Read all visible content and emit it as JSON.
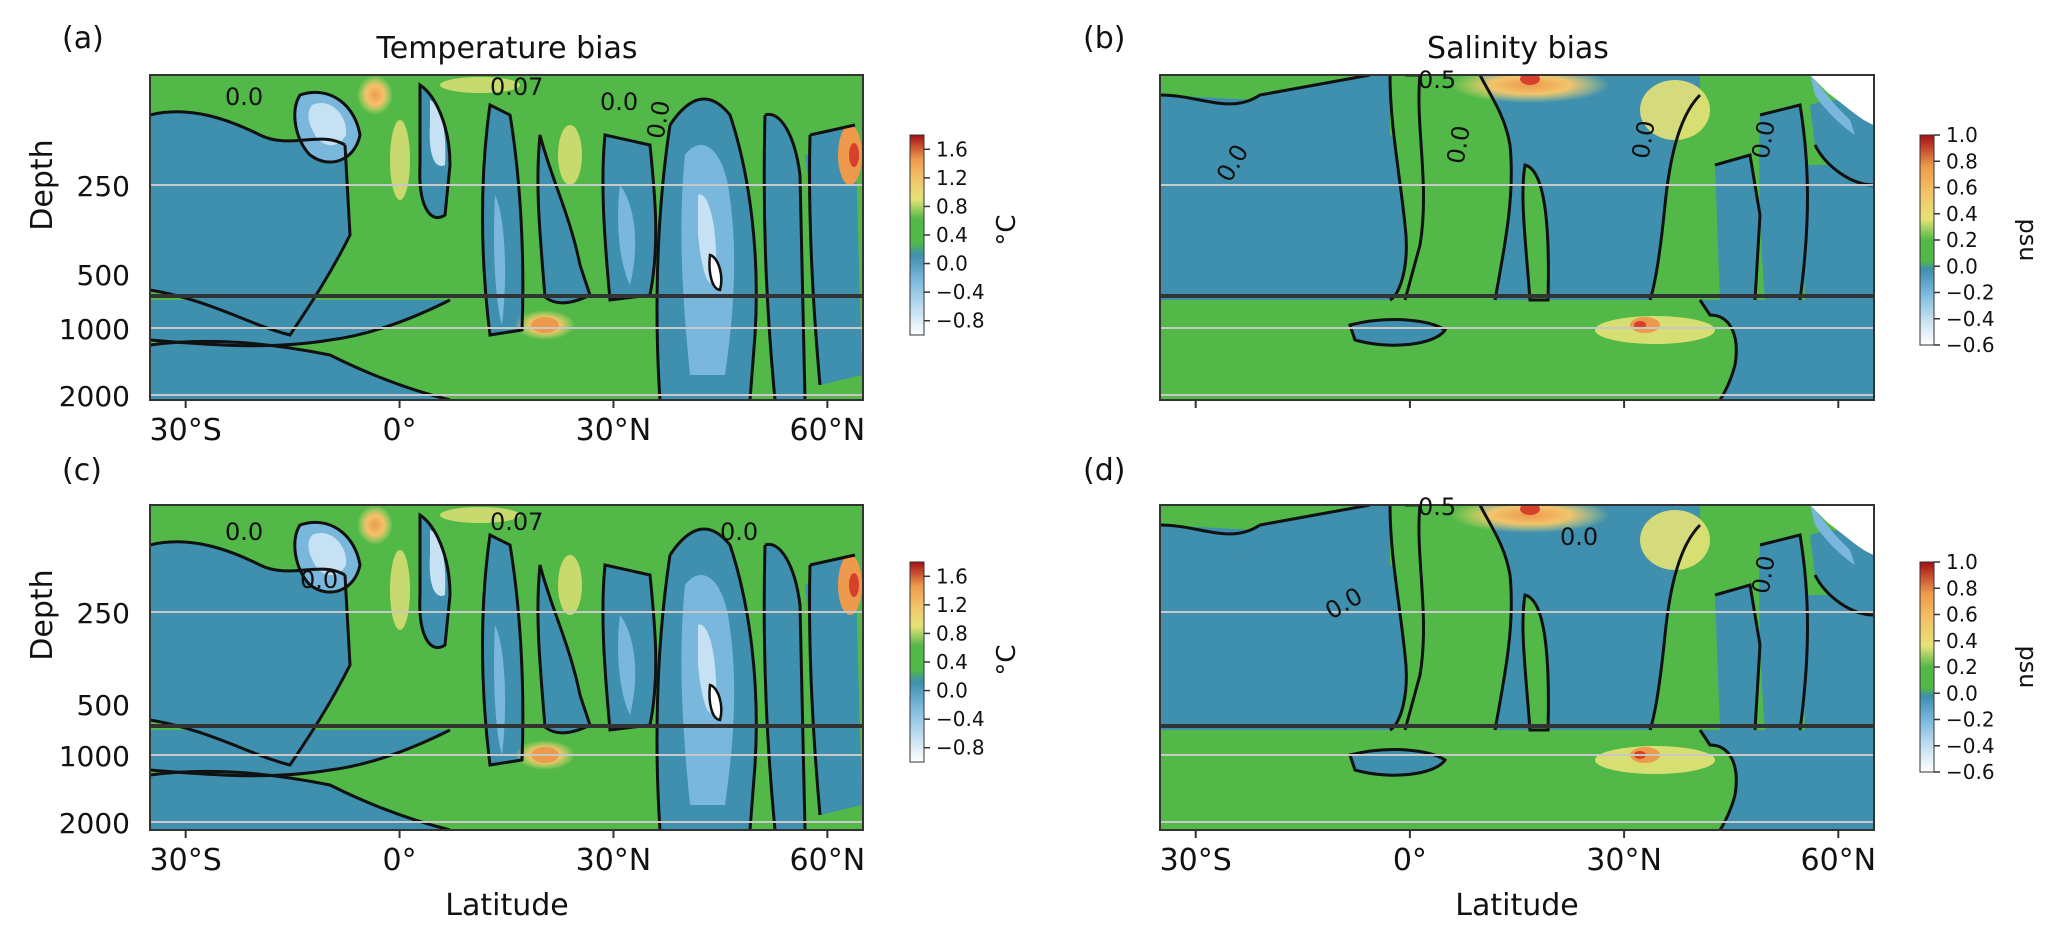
{
  "figure": {
    "title_left": "Temperature bias",
    "title_right": "Salinity bias",
    "xlabel": "Latitude",
    "ylabel": "Depth"
  },
  "chart_data": [
    {
      "panel": "(a)",
      "type": "heatmap",
      "title": "Temperature bias",
      "xlabel": "",
      "ylabel": "Depth",
      "x_ticks": [
        "30°S",
        "0°",
        "30°N",
        "60°N"
      ],
      "x_tick_values": [
        -30,
        0,
        30,
        60
      ],
      "xlim": [
        -35,
        65
      ],
      "y_ticks": [
        "250",
        "500",
        "1000",
        "2000"
      ],
      "colorbar": {
        "unit": "°C",
        "ticks": [
          "1.6",
          "1.2",
          "0.8",
          "0.4",
          "0.0",
          "−0.4",
          "−0.8"
        ],
        "range": [
          -1.0,
          1.8
        ]
      },
      "contour_labels": [
        "0.0",
        "0.07",
        "0.0",
        "0.0"
      ]
    },
    {
      "panel": "(b)",
      "type": "heatmap",
      "title": "Salinity bias",
      "xlabel": "",
      "ylabel": "",
      "x_tick_values": [
        -30,
        0,
        30,
        60
      ],
      "xlim": [
        -35,
        65
      ],
      "colorbar": {
        "unit": "psu",
        "ticks": [
          "1.0",
          "0.8",
          "0.6",
          "0.4",
          "0.2",
          "0.0",
          "−0.2",
          "−0.4",
          "−0.6"
        ],
        "range": [
          -0.6,
          1.0
        ]
      },
      "contour_labels": [
        "0.5",
        "0.0",
        "0.0",
        "0.0",
        "0.0"
      ]
    },
    {
      "panel": "(c)",
      "type": "heatmap",
      "title": "",
      "xlabel": "Latitude",
      "ylabel": "Depth",
      "x_ticks": [
        "30°S",
        "0°",
        "30°N",
        "60°N"
      ],
      "x_tick_values": [
        -30,
        0,
        30,
        60
      ],
      "xlim": [
        -35,
        65
      ],
      "y_ticks": [
        "250",
        "500",
        "1000",
        "2000"
      ],
      "colorbar": {
        "unit": "°C",
        "ticks": [
          "1.6",
          "1.2",
          "0.8",
          "0.4",
          "0.0",
          "−0.4",
          "−0.8"
        ],
        "range": [
          -1.0,
          1.8
        ]
      },
      "contour_labels": [
        "0.0",
        "0.07",
        "0.0",
        "0.0"
      ]
    },
    {
      "panel": "(d)",
      "type": "heatmap",
      "title": "",
      "xlabel": "Latitude",
      "ylabel": "",
      "x_ticks": [
        "30°S",
        "0°",
        "30°N",
        "60°N"
      ],
      "x_tick_values": [
        -30,
        0,
        30,
        60
      ],
      "xlim": [
        -35,
        65
      ],
      "colorbar": {
        "unit": "psu",
        "ticks": [
          "1.0",
          "0.8",
          "0.6",
          "0.4",
          "0.2",
          "0.0",
          "−0.2",
          "−0.4",
          "−0.6"
        ],
        "range": [
          -0.6,
          1.0
        ]
      },
      "contour_labels": [
        "0.5",
        "0.0",
        "0.0",
        "0.0"
      ]
    }
  ],
  "colors": {
    "green": "#52b848",
    "blue": "#3f8fae",
    "light_blue": "#79b7dc",
    "pale_blue": "#c5e1f2",
    "yellow": "#e6e277",
    "light_orange": "#f2c46a",
    "orange": "#ee9a4c",
    "red": "#d7412b",
    "dark_red": "#a50f15",
    "grid": "#c8c8c8"
  }
}
